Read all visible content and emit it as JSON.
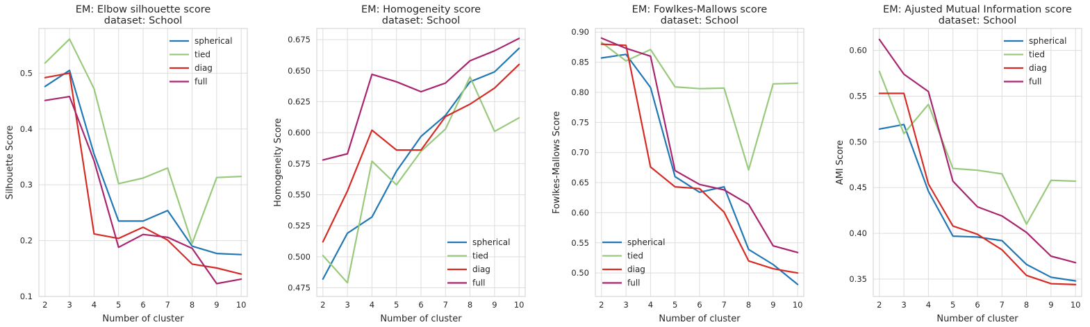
{
  "chart_data": [
    {
      "type": "line",
      "title": "EM: Elbow silhouette score",
      "subtitle": "dataset: School",
      "xlabel": "Number of cluster",
      "ylabel": "Silhouette Score",
      "x": [
        2,
        3,
        4,
        5,
        6,
        7,
        8,
        9,
        10
      ],
      "xlim": [
        1.75,
        10.25
      ],
      "ylim": [
        0.1,
        0.58
      ],
      "yticks": [
        0.1,
        0.2,
        0.3,
        0.4,
        0.5
      ],
      "ytick_labels": [
        "0.1",
        "0.2",
        "0.3",
        "0.4",
        "0.5"
      ],
      "grid": true,
      "legend_position": "upper right",
      "series": [
        {
          "name": "spherical",
          "color": "#2077b4",
          "values": [
            0.476,
            0.505,
            0.355,
            0.235,
            0.235,
            0.254,
            0.19,
            0.177,
            0.175
          ]
        },
        {
          "name": "tied",
          "color": "#98c97c",
          "values": [
            0.518,
            0.561,
            0.472,
            0.302,
            0.312,
            0.33,
            0.195,
            0.313,
            0.315
          ]
        },
        {
          "name": "diag",
          "color": "#d62b25",
          "values": [
            0.492,
            0.5,
            0.212,
            0.204,
            0.224,
            0.201,
            0.158,
            0.151,
            0.14
          ]
        },
        {
          "name": "full",
          "color": "#a8246e",
          "values": [
            0.451,
            0.458,
            0.343,
            0.188,
            0.211,
            0.206,
            0.186,
            0.123,
            0.131
          ]
        }
      ]
    },
    {
      "type": "line",
      "title": "EM: Homogeneity score",
      "subtitle": "dataset: School",
      "xlabel": "Number of cluster",
      "ylabel": "Homogeneity Score",
      "x": [
        2,
        3,
        4,
        5,
        6,
        7,
        8,
        9,
        10
      ],
      "xlim": [
        1.75,
        10.25
      ],
      "ylim": [
        0.468,
        0.684
      ],
      "yticks": [
        0.475,
        0.5,
        0.525,
        0.55,
        0.575,
        0.6,
        0.625,
        0.65,
        0.675
      ],
      "ytick_labels": [
        "0.475",
        "0.500",
        "0.525",
        "0.550",
        "0.575",
        "0.600",
        "0.625",
        "0.650",
        "0.675"
      ],
      "grid": true,
      "legend_position": "lower right",
      "series": [
        {
          "name": "spherical",
          "color": "#2077b4",
          "values": [
            0.482,
            0.519,
            0.532,
            0.569,
            0.597,
            0.614,
            0.641,
            0.649,
            0.668
          ]
        },
        {
          "name": "tied",
          "color": "#98c97c",
          "values": [
            0.501,
            0.479,
            0.577,
            0.558,
            0.585,
            0.603,
            0.645,
            0.601,
            0.612
          ]
        },
        {
          "name": "diag",
          "color": "#d62b25",
          "values": [
            0.512,
            0.553,
            0.602,
            0.586,
            0.586,
            0.613,
            0.623,
            0.636,
            0.655
          ]
        },
        {
          "name": "full",
          "color": "#a8246e",
          "values": [
            0.578,
            0.583,
            0.647,
            0.641,
            0.633,
            0.64,
            0.658,
            0.666,
            0.676
          ]
        }
      ]
    },
    {
      "type": "line",
      "title": "EM: Fowlkes-Mallows score",
      "subtitle": "dataset: School",
      "xlabel": "Number of cluster",
      "ylabel": "Fowlkes-Mallows Score",
      "x": [
        2,
        3,
        4,
        5,
        6,
        7,
        8,
        9,
        10
      ],
      "xlim": [
        1.75,
        10.25
      ],
      "ylim": [
        0.461,
        0.906
      ],
      "yticks": [
        0.5,
        0.55,
        0.6,
        0.65,
        0.7,
        0.75,
        0.8,
        0.85,
        0.9
      ],
      "ytick_labels": [
        "0.50",
        "0.55",
        "0.60",
        "0.65",
        "0.70",
        "0.75",
        "0.80",
        "0.85",
        "0.90"
      ],
      "grid": true,
      "legend_position": "lower left",
      "series": [
        {
          "name": "spherical",
          "color": "#2077b4",
          "values": [
            0.857,
            0.863,
            0.808,
            0.66,
            0.634,
            0.643,
            0.539,
            0.514,
            0.481
          ]
        },
        {
          "name": "tied",
          "color": "#98c97c",
          "values": [
            0.883,
            0.852,
            0.871,
            0.809,
            0.806,
            0.807,
            0.671,
            0.814,
            0.815
          ]
        },
        {
          "name": "diag",
          "color": "#d62b25",
          "values": [
            0.88,
            0.878,
            0.676,
            0.643,
            0.64,
            0.601,
            0.52,
            0.507,
            0.5
          ]
        },
        {
          "name": "full",
          "color": "#a8246e",
          "values": [
            0.89,
            0.873,
            0.86,
            0.67,
            0.647,
            0.638,
            0.614,
            0.545,
            0.534
          ]
        }
      ]
    },
    {
      "type": "line",
      "title": "EM: Ajusted Mutual Information score",
      "subtitle": "dataset: School",
      "xlabel": "Number of cluster",
      "ylabel": "AMI Score",
      "x": [
        2,
        3,
        4,
        5,
        6,
        7,
        8,
        9,
        10
      ],
      "xlim": [
        1.75,
        10.25
      ],
      "ylim": [
        0.331,
        0.624
      ],
      "yticks": [
        0.35,
        0.4,
        0.45,
        0.5,
        0.55,
        0.6
      ],
      "ytick_labels": [
        "0.35",
        "0.40",
        "0.45",
        "0.50",
        "0.55",
        "0.60"
      ],
      "grid": true,
      "legend_position": "upper right",
      "series": [
        {
          "name": "spherical",
          "color": "#2077b4",
          "values": [
            0.514,
            0.519,
            0.446,
            0.397,
            0.396,
            0.392,
            0.366,
            0.352,
            0.348
          ]
        },
        {
          "name": "tied",
          "color": "#98c97c",
          "values": [
            0.577,
            0.509,
            0.541,
            0.471,
            0.469,
            0.465,
            0.41,
            0.458,
            0.457
          ]
        },
        {
          "name": "diag",
          "color": "#d62b25",
          "values": [
            0.553,
            0.553,
            0.454,
            0.408,
            0.399,
            0.382,
            0.354,
            0.345,
            0.344
          ]
        },
        {
          "name": "full",
          "color": "#a8246e",
          "values": [
            0.612,
            0.574,
            0.555,
            0.457,
            0.429,
            0.419,
            0.401,
            0.375,
            0.368
          ]
        }
      ]
    }
  ]
}
